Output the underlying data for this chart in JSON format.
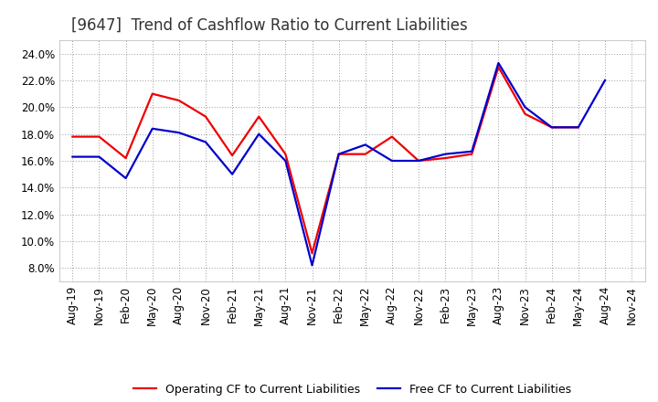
{
  "title": "[9647]  Trend of Cashflow Ratio to Current Liabilities",
  "x_labels": [
    "Aug-19",
    "Nov-19",
    "Feb-20",
    "May-20",
    "Aug-20",
    "Nov-20",
    "Feb-21",
    "May-21",
    "Aug-21",
    "Nov-21",
    "Feb-22",
    "May-22",
    "Aug-22",
    "Nov-22",
    "Feb-23",
    "May-23",
    "Aug-23",
    "Nov-23",
    "Feb-24",
    "May-24",
    "Aug-24",
    "Nov-24"
  ],
  "operating_cf": [
    17.8,
    17.8,
    16.2,
    21.0,
    20.5,
    19.3,
    16.4,
    19.3,
    16.5,
    9.1,
    16.5,
    16.5,
    17.8,
    16.0,
    16.2,
    16.5,
    23.0,
    19.5,
    18.5,
    18.5,
    null,
    null
  ],
  "free_cf": [
    16.3,
    16.3,
    14.7,
    18.4,
    18.1,
    17.4,
    15.0,
    18.0,
    16.0,
    8.2,
    16.5,
    17.2,
    16.0,
    16.0,
    16.5,
    16.7,
    23.3,
    20.0,
    18.5,
    18.5,
    22.0,
    null
  ],
  "ylim": [
    7.0,
    25.0
  ],
  "yticks": [
    8.0,
    10.0,
    12.0,
    14.0,
    16.0,
    18.0,
    20.0,
    22.0,
    24.0
  ],
  "operating_color": "#ee0000",
  "free_color": "#0000cc",
  "background_color": "#ffffff",
  "grid_color": "#999999",
  "legend_operating": "Operating CF to Current Liabilities",
  "legend_free": "Free CF to Current Liabilities",
  "title_fontsize": 12,
  "axis_fontsize": 8.5,
  "legend_fontsize": 9,
  "line_width": 1.6
}
